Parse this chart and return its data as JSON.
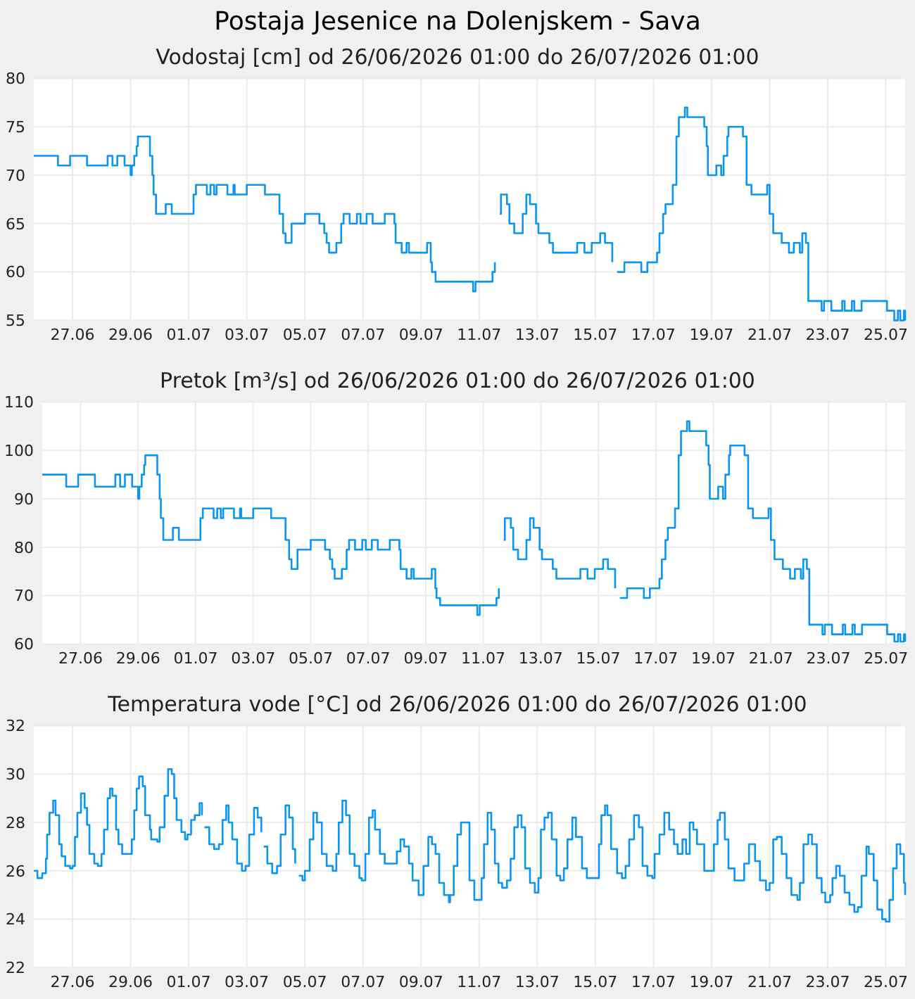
{
  "chart_data": [
    {
      "type": "step",
      "title": "Postaja Jesenice na Dolenjskem - Sava",
      "subtitle": "Vodostaj [cm] od 26/06/2026 01:00 do 26/07/2026 01:00",
      "x": [
        "2026-06-25T16:00",
        "2026-06-26T12:00",
        "2026-06-26T22:00",
        "2026-06-27T12:00",
        "2026-06-28T05:00",
        "2026-06-28T09:00",
        "2026-06-28T13:00",
        "2026-06-28T19:00",
        "2026-06-29T00:00",
        "2026-06-29T01:00",
        "2026-06-29T03:00",
        "2026-06-29T05:00",
        "2026-06-29T06:00",
        "2026-06-29T16:00",
        "2026-06-29T18:00",
        "2026-06-29T19:00",
        "2026-06-29T21:00",
        "2026-06-30T05:00",
        "2026-06-30T10:00",
        "2026-07-01T04:00",
        "2026-07-01T06:00",
        "2026-07-01T15:00",
        "2026-07-01T18:00",
        "2026-07-01T21:00",
        "2026-07-01T23:00",
        "2026-07-02T08:00",
        "2026-07-02T13:00",
        "2026-07-02T14:00",
        "2026-07-03T00:00",
        "2026-07-03T15:00",
        "2026-07-04T03:00",
        "2026-07-04T06:00",
        "2026-07-04T08:00",
        "2026-07-04T13:00",
        "2026-07-05T00:00",
        "2026-07-05T12:00",
        "2026-07-05T16:00",
        "2026-07-05T18:00",
        "2026-07-05T20:00",
        "2026-07-06T02:00",
        "2026-07-06T06:00",
        "2026-07-06T08:00",
        "2026-07-06T13:00",
        "2026-07-06T19:00",
        "2026-07-06T22:00",
        "2026-07-07T03:00",
        "2026-07-07T08:00",
        "2026-07-07T18:00",
        "2026-07-08T02:00",
        "2026-07-08T03:00",
        "2026-07-08T08:00",
        "2026-07-08T12:00",
        "2026-07-08T14:00",
        "2026-07-09T05:00",
        "2026-07-09T08:00",
        "2026-07-09T09:00",
        "2026-07-09T12:00",
        "2026-07-10T19:00",
        "2026-07-10T21:00",
        "2026-07-11T11:00",
        "2026-07-11T13:00",
        "2026-07-11T14:00",
        "2026-07-11T17:00",
        "2026-07-11T18:00",
        "2026-07-11T23:00",
        "2026-07-12T01:00",
        "2026-07-12T05:00",
        "2026-07-12T12:00",
        "2026-07-12T15:00",
        "2026-07-12T18:00",
        "2026-07-12T23:00",
        "2026-07-13T01:00",
        "2026-07-13T10:00",
        "2026-07-13T13:00",
        "2026-07-14T09:00",
        "2026-07-14T15:00",
        "2026-07-14T21:00",
        "2026-07-15T04:00",
        "2026-07-15T08:00",
        "2026-07-15T14:00",
        "2026-07-15T16:00",
        "2026-07-15T18:00",
        "2026-07-16T00:00",
        "2026-07-16T14:00",
        "2026-07-16T19:00",
        "2026-07-17T03:00",
        "2026-07-17T05:00",
        "2026-07-17T08:00",
        "2026-07-17T10:00",
        "2026-07-17T16:00",
        "2026-07-17T19:00",
        "2026-07-17T21:00",
        "2026-07-18T02:00",
        "2026-07-18T04:00",
        "2026-07-18T18:00",
        "2026-07-18T20:00",
        "2026-07-18T21:00",
        "2026-07-19T04:00",
        "2026-07-19T08:00",
        "2026-07-19T10:00",
        "2026-07-19T13:00",
        "2026-07-19T14:00",
        "2026-07-20T02:00",
        "2026-07-20T05:00",
        "2026-07-20T09:00",
        "2026-07-20T22:00",
        "2026-07-21T00:00",
        "2026-07-21T03:00",
        "2026-07-21T10:00",
        "2026-07-21T16:00",
        "2026-07-21T20:00",
        "2026-07-22T01:00",
        "2026-07-22T03:00",
        "2026-07-22T06:00",
        "2026-07-22T08:00",
        "2026-07-22T19:00",
        "2026-07-22T21:00",
        "2026-07-23T03:00",
        "2026-07-23T12:00",
        "2026-07-23T14:00",
        "2026-07-23T20:00",
        "2026-07-23T22:00",
        "2026-07-24T04:00",
        "2026-07-25T01:00",
        "2026-07-25T07:00",
        "2026-07-25T10:00",
        "2026-07-25T12:00",
        "2026-07-25T15:00",
        "2026-07-25T16:00"
      ],
      "series": [
        {
          "color": "#0a96f0",
          "values": [
            72,
            71,
            72,
            71,
            72,
            71,
            72,
            71,
            70,
            71,
            72,
            73,
            74,
            72,
            70,
            68,
            66,
            67,
            66,
            68,
            69,
            68,
            69,
            68,
            69,
            68,
            69,
            68,
            69,
            68,
            66,
            64,
            63,
            65,
            66,
            65,
            64,
            63,
            62,
            63,
            65,
            66,
            65,
            66,
            65,
            66,
            65,
            66,
            65,
            63,
            62,
            63,
            62,
            63,
            61,
            60,
            59,
            58,
            59,
            60,
            61,
            null,
            66,
            68,
            67,
            65,
            64,
            66,
            68,
            67,
            65,
            64,
            63,
            62,
            63,
            62,
            63,
            64,
            63,
            61,
            null,
            60,
            61,
            60,
            61,
            62,
            64,
            66,
            67,
            69,
            74,
            76,
            77,
            76,
            75,
            73,
            70,
            71,
            70,
            72,
            74,
            75,
            74,
            69,
            68,
            69,
            66,
            64,
            63,
            62,
            63,
            62,
            64,
            63,
            57,
            56,
            57,
            56,
            57,
            56,
            57,
            56,
            57,
            56,
            55,
            56,
            55,
            56,
            55
          ]
        }
      ],
      "xlim": [
        "2026-06-25T16:00",
        "2026-07-25T16:00"
      ],
      "xticks": [
        {
          "value": "2026-06-27",
          "label": "27.06"
        },
        {
          "value": "2026-06-29",
          "label": "29.06"
        },
        {
          "value": "2026-07-01",
          "label": "01.07"
        },
        {
          "value": "2026-07-03",
          "label": "03.07"
        },
        {
          "value": "2026-07-05",
          "label": "05.07"
        },
        {
          "value": "2026-07-07",
          "label": "07.07"
        },
        {
          "value": "2026-07-09",
          "label": "09.07"
        },
        {
          "value": "2026-07-11",
          "label": "11.07"
        },
        {
          "value": "2026-07-13",
          "label": "13.07"
        },
        {
          "value": "2026-07-15",
          "label": "15.07"
        },
        {
          "value": "2026-07-17",
          "label": "17.07"
        },
        {
          "value": "2026-07-19",
          "label": "19.07"
        },
        {
          "value": "2026-07-21",
          "label": "21.07"
        },
        {
          "value": "2026-07-23",
          "label": "23.07"
        },
        {
          "value": "2026-07-25",
          "label": "25.07"
        }
      ],
      "ylim": [
        55,
        80
      ],
      "yticks": [
        55,
        60,
        65,
        70,
        75,
        80
      ],
      "grid": true
    },
    {
      "type": "step",
      "subtitle": "Pretok [m³/s] od 26/06/2026 01:00 do 26/07/2026 01:00",
      "x": [
        "2026-06-25T16:00",
        "2026-06-26T12:00",
        "2026-06-26T22:00",
        "2026-06-27T12:00",
        "2026-06-28T05:00",
        "2026-06-28T09:00",
        "2026-06-28T13:00",
        "2026-06-28T19:00",
        "2026-06-29T00:00",
        "2026-06-29T01:00",
        "2026-06-29T03:00",
        "2026-06-29T05:00",
        "2026-06-29T06:00",
        "2026-06-29T16:00",
        "2026-06-29T18:00",
        "2026-06-29T19:00",
        "2026-06-29T21:00",
        "2026-06-30T05:00",
        "2026-06-30T10:00",
        "2026-07-01T04:00",
        "2026-07-01T06:00",
        "2026-07-01T15:00",
        "2026-07-01T18:00",
        "2026-07-01T21:00",
        "2026-07-01T23:00",
        "2026-07-02T08:00",
        "2026-07-02T13:00",
        "2026-07-02T14:00",
        "2026-07-03T00:00",
        "2026-07-03T15:00",
        "2026-07-04T03:00",
        "2026-07-04T06:00",
        "2026-07-04T08:00",
        "2026-07-04T13:00",
        "2026-07-05T00:00",
        "2026-07-05T12:00",
        "2026-07-05T16:00",
        "2026-07-05T18:00",
        "2026-07-05T20:00",
        "2026-07-06T02:00",
        "2026-07-06T06:00",
        "2026-07-06T08:00",
        "2026-07-06T13:00",
        "2026-07-06T19:00",
        "2026-07-06T22:00",
        "2026-07-07T03:00",
        "2026-07-07T08:00",
        "2026-07-07T18:00",
        "2026-07-08T02:00",
        "2026-07-08T03:00",
        "2026-07-08T08:00",
        "2026-07-08T12:00",
        "2026-07-08T14:00",
        "2026-07-09T05:00",
        "2026-07-09T08:00",
        "2026-07-09T09:00",
        "2026-07-09T12:00",
        "2026-07-10T19:00",
        "2026-07-10T21:00",
        "2026-07-11T11:00",
        "2026-07-11T13:00",
        "2026-07-11T14:00",
        "2026-07-11T17:00",
        "2026-07-11T18:00",
        "2026-07-11T23:00",
        "2026-07-12T01:00",
        "2026-07-12T05:00",
        "2026-07-12T12:00",
        "2026-07-12T15:00",
        "2026-07-12T18:00",
        "2026-07-12T23:00",
        "2026-07-13T01:00",
        "2026-07-13T10:00",
        "2026-07-13T13:00",
        "2026-07-14T09:00",
        "2026-07-14T15:00",
        "2026-07-14T21:00",
        "2026-07-15T04:00",
        "2026-07-15T08:00",
        "2026-07-15T14:00",
        "2026-07-15T16:00",
        "2026-07-15T18:00",
        "2026-07-16T00:00",
        "2026-07-16T14:00",
        "2026-07-16T19:00",
        "2026-07-17T03:00",
        "2026-07-17T05:00",
        "2026-07-17T08:00",
        "2026-07-17T10:00",
        "2026-07-17T16:00",
        "2026-07-17T19:00",
        "2026-07-17T21:00",
        "2026-07-18T02:00",
        "2026-07-18T04:00",
        "2026-07-18T18:00",
        "2026-07-18T20:00",
        "2026-07-18T21:00",
        "2026-07-19T04:00",
        "2026-07-19T08:00",
        "2026-07-19T10:00",
        "2026-07-19T13:00",
        "2026-07-19T14:00",
        "2026-07-20T02:00",
        "2026-07-20T05:00",
        "2026-07-20T09:00",
        "2026-07-20T22:00",
        "2026-07-21T00:00",
        "2026-07-21T03:00",
        "2026-07-21T10:00",
        "2026-07-21T16:00",
        "2026-07-21T20:00",
        "2026-07-22T01:00",
        "2026-07-22T03:00",
        "2026-07-22T06:00",
        "2026-07-22T08:00",
        "2026-07-22T19:00",
        "2026-07-22T21:00",
        "2026-07-23T03:00",
        "2026-07-23T12:00",
        "2026-07-23T14:00",
        "2026-07-23T20:00",
        "2026-07-23T22:00",
        "2026-07-24T04:00",
        "2026-07-25T01:00",
        "2026-07-25T07:00",
        "2026-07-25T10:00",
        "2026-07-25T12:00",
        "2026-07-25T15:00",
        "2026-07-25T16:00"
      ],
      "series": [
        {
          "color": "#0a96f0",
          "values": [
            95,
            92.5,
            95,
            92.5,
            95,
            92.5,
            95,
            92.5,
            90,
            92.5,
            95,
            97,
            99,
            95,
            90,
            86,
            81.5,
            84,
            81.5,
            86,
            88,
            86,
            88,
            86,
            88,
            86,
            88,
            86,
            88,
            86,
            81.5,
            77.5,
            75.5,
            79.5,
            81.5,
            79.5,
            77.5,
            75.5,
            73.5,
            75.5,
            79.5,
            81.5,
            79.5,
            81.5,
            79.5,
            81.5,
            79.5,
            81.5,
            79.5,
            75.5,
            73.5,
            75.5,
            73.5,
            75.5,
            71.5,
            69.5,
            68,
            66,
            68,
            69.5,
            71.5,
            null,
            81.5,
            86,
            84,
            79.5,
            77.5,
            81.5,
            86,
            84,
            79.5,
            77.5,
            75.5,
            73.5,
            75.5,
            73.5,
            75.5,
            77.5,
            75.5,
            71.5,
            null,
            69.5,
            71.5,
            69.5,
            71.5,
            73.5,
            77.5,
            81.5,
            84,
            88,
            99,
            104,
            106,
            104,
            101,
            97,
            90,
            92.5,
            90,
            95,
            99,
            101,
            99,
            88,
            86,
            88,
            81.5,
            77.5,
            75.5,
            73.5,
            75.5,
            73.5,
            77.5,
            75.5,
            64,
            62,
            64,
            62,
            64,
            62,
            64,
            62,
            64,
            62,
            60.5,
            62,
            60.5,
            62,
            60.5
          ]
        }
      ],
      "xlim": [
        "2026-06-25T16:00",
        "2026-07-25T16:00"
      ],
      "xticks": [
        {
          "value": "2026-06-27",
          "label": "27.06"
        },
        {
          "value": "2026-06-29",
          "label": "29.06"
        },
        {
          "value": "2026-07-01",
          "label": "01.07"
        },
        {
          "value": "2026-07-03",
          "label": "03.07"
        },
        {
          "value": "2026-07-05",
          "label": "05.07"
        },
        {
          "value": "2026-07-07",
          "label": "07.07"
        },
        {
          "value": "2026-07-09",
          "label": "09.07"
        },
        {
          "value": "2026-07-11",
          "label": "11.07"
        },
        {
          "value": "2026-07-13",
          "label": "13.07"
        },
        {
          "value": "2026-07-15",
          "label": "15.07"
        },
        {
          "value": "2026-07-17",
          "label": "17.07"
        },
        {
          "value": "2026-07-19",
          "label": "19.07"
        },
        {
          "value": "2026-07-21",
          "label": "21.07"
        },
        {
          "value": "2026-07-23",
          "label": "23.07"
        },
        {
          "value": "2026-07-25",
          "label": "25.07"
        }
      ],
      "ylim": [
        60,
        110
      ],
      "yticks": [
        60,
        70,
        80,
        90,
        100,
        110
      ],
      "grid": true
    },
    {
      "type": "step",
      "subtitle": "Temperatura vode [°C] od 26/06/2026 01:00 do 26/07/2026 01:00",
      "x": [
        "2026-06-25T16:00",
        "2026-06-25T19:00",
        "2026-06-25T23:00",
        "2026-06-26T02:00",
        "2026-06-26T03:00",
        "2026-06-26T05:00",
        "2026-06-26T08:00",
        "2026-06-26T10:00",
        "2026-06-26T13:00",
        "2026-06-26T15:00",
        "2026-06-26T18:00",
        "2026-06-26T22:00",
        "2026-06-27T00:00",
        "2026-06-27T02:00",
        "2026-06-27T04:00",
        "2026-06-27T07:00",
        "2026-06-27T10:00",
        "2026-06-27T12:00",
        "2026-06-27T14:00",
        "2026-06-27T18:00",
        "2026-06-27T21:00",
        "2026-06-28T00:00",
        "2026-06-28T02:00",
        "2026-06-28T05:00",
        "2026-06-28T07:00",
        "2026-06-28T09:00",
        "2026-06-28T12:00",
        "2026-06-28T14:00",
        "2026-06-28T17:00",
        "2026-06-28T21:00",
        "2026-06-29T01:00",
        "2026-06-29T03:00",
        "2026-06-29T05:00",
        "2026-06-29T07:00",
        "2026-06-29T10:00",
        "2026-06-29T12:00",
        "2026-06-29T16:00",
        "2026-06-29T17:00",
        "2026-06-29T22:00",
        "2026-06-30T00:00",
        "2026-06-30T04:00",
        "2026-06-30T07:00",
        "2026-06-30T10:00",
        "2026-06-30T12:00",
        "2026-06-30T14:00",
        "2026-06-30T18:00",
        "2026-06-30T21:00",
        "2026-06-30T23:00",
        "2026-07-01T02:00",
        "2026-07-01T05:00",
        "2026-07-01T09:00",
        "2026-07-01T11:00",
        "2026-07-01T12:00",
        "2026-07-01T13:00",
        "2026-07-01T17:00",
        "2026-07-01T21:00",
        "2026-07-02T01:00",
        "2026-07-02T04:00",
        "2026-07-02T07:00",
        "2026-07-02T09:00",
        "2026-07-02T12:00",
        "2026-07-02T16:00",
        "2026-07-02T20:00",
        "2026-07-02T23:00",
        "2026-07-03T02:00",
        "2026-07-03T06:00",
        "2026-07-03T09:00",
        "2026-07-03T12:00",
        "2026-07-03T13:00",
        "2026-07-03T14:00",
        "2026-07-03T17:00",
        "2026-07-03T21:00",
        "2026-07-04T01:00",
        "2026-07-04T04:00",
        "2026-07-04T08:00",
        "2026-07-04T11:00",
        "2026-07-04T14:00",
        "2026-07-04T16:00",
        "2026-07-04T17:00",
        "2026-07-04T19:00",
        "2026-07-04T22:00",
        "2026-07-05T00:00",
        "2026-07-05T04:00",
        "2026-07-05T07:00",
        "2026-07-05T10:00",
        "2026-07-05T14:00",
        "2026-07-05T18:00",
        "2026-07-05T23:00",
        "2026-07-06T02:00",
        "2026-07-06T04:00",
        "2026-07-06T07:00",
        "2026-07-06T10:00",
        "2026-07-06T13:00",
        "2026-07-06T17:00",
        "2026-07-06T21:00",
        "2026-07-06T23:00",
        "2026-07-07T02:00",
        "2026-07-07T05:00",
        "2026-07-07T08:00",
        "2026-07-07T10:00",
        "2026-07-07T14:00",
        "2026-07-07T18:00",
        "2026-07-08T00:00",
        "2026-07-08T04:00",
        "2026-07-08T07:00",
        "2026-07-08T10:00",
        "2026-07-08T14:00",
        "2026-07-08T17:00",
        "2026-07-08T22:00",
        "2026-07-09T02:00",
        "2026-07-09T06:00",
        "2026-07-09T09:00",
        "2026-07-09T12:00",
        "2026-07-09T15:00",
        "2026-07-09T19:00",
        "2026-07-09T23:00",
        "2026-07-10T00:00",
        "2026-07-10T03:00",
        "2026-07-10T06:00",
        "2026-07-10T09:00",
        "2026-07-10T16:00",
        "2026-07-10T20:00",
        "2026-07-10T23:00",
        "2026-07-11T02:00",
        "2026-07-11T04:00",
        "2026-07-11T07:00",
        "2026-07-11T10:00",
        "2026-07-11T13:00",
        "2026-07-11T16:00",
        "2026-07-11T19:00",
        "2026-07-11T23:00",
        "2026-07-12T02:00",
        "2026-07-12T05:00",
        "2026-07-12T08:00",
        "2026-07-12T11:00",
        "2026-07-12T14:00",
        "2026-07-12T18:00",
        "2026-07-12T22:00",
        "2026-07-13T01:00",
        "2026-07-13T03:00",
        "2026-07-13T06:00",
        "2026-07-13T09:00",
        "2026-07-13T12:00",
        "2026-07-13T16:00",
        "2026-07-13T19:00",
        "2026-07-13T22:00",
        "2026-07-14T01:00",
        "2026-07-14T05:00",
        "2026-07-14T08:00",
        "2026-07-14T13:00",
        "2026-07-14T17:00",
        "2026-07-14T23:00",
        "2026-07-15T03:00",
        "2026-07-15T05:00",
        "2026-07-15T08:00",
        "2026-07-15T10:00",
        "2026-07-15T13:00",
        "2026-07-15T18:00",
        "2026-07-15T22:00",
        "2026-07-16T01:00",
        "2026-07-16T04:00",
        "2026-07-16T08:00",
        "2026-07-16T12:00",
        "2026-07-16T15:00",
        "2026-07-16T19:00",
        "2026-07-16T23:00",
        "2026-07-17T01:00",
        "2026-07-17T05:00",
        "2026-07-17T09:00",
        "2026-07-17T13:00",
        "2026-07-17T17:00",
        "2026-07-17T20:00",
        "2026-07-18T00:00",
        "2026-07-18T03:00",
        "2026-07-18T06:00",
        "2026-07-18T09:00",
        "2026-07-18T12:00",
        "2026-07-18T18:00",
        "2026-07-19T00:00",
        "2026-07-19T02:00",
        "2026-07-19T05:00",
        "2026-07-19T07:00",
        "2026-07-19T11:00",
        "2026-07-19T14:00",
        "2026-07-19T19:00",
        "2026-07-19T23:00",
        "2026-07-20T03:00",
        "2026-07-20T07:00",
        "2026-07-20T09:00",
        "2026-07-20T12:00",
        "2026-07-20T16:00",
        "2026-07-20T21:00",
        "2026-07-21T00:00",
        "2026-07-21T03:00",
        "2026-07-21T06:00",
        "2026-07-21T10:00",
        "2026-07-21T14:00",
        "2026-07-21T18:00",
        "2026-07-21T23:00",
        "2026-07-22T01:00",
        "2026-07-22T04:00",
        "2026-07-22T08:00",
        "2026-07-22T11:00",
        "2026-07-22T15:00",
        "2026-07-22T19:00",
        "2026-07-22T22:00",
        "2026-07-23T02:00",
        "2026-07-23T04:00",
        "2026-07-23T07:00",
        "2026-07-23T10:00",
        "2026-07-23T14:00",
        "2026-07-23T18:00",
        "2026-07-23T22:00",
        "2026-07-24T01:00",
        "2026-07-24T04:00",
        "2026-07-24T08:00",
        "2026-07-24T10:00",
        "2026-07-24T14:00",
        "2026-07-24T17:00",
        "2026-07-24T21:00",
        "2026-07-25T00:00",
        "2026-07-25T03:00",
        "2026-07-25T06:00",
        "2026-07-25T09:00",
        "2026-07-25T12:00",
        "2026-07-25T15:00",
        "2026-07-25T16:00"
      ],
      "series": [
        {
          "color": "#0a96f0",
          "values": [
            26.0,
            25.7,
            25.9,
            26.5,
            27.5,
            28.4,
            28.9,
            28.3,
            27.1,
            26.6,
            26.2,
            26.1,
            26.2,
            27.4,
            28.4,
            29.2,
            28.6,
            27.9,
            26.7,
            26.3,
            26.2,
            26.7,
            27.7,
            29.0,
            29.4,
            29.1,
            27.7,
            27.1,
            26.7,
            26.7,
            27.3,
            28.5,
            29.4,
            29.9,
            29.5,
            28.3,
            27.7,
            27.3,
            27.2,
            27.8,
            29.1,
            30.2,
            30.0,
            29.0,
            28.1,
            27.6,
            27.3,
            27.5,
            28.1,
            28.3,
            28.8,
            28.3,
            null,
            27.8,
            27.1,
            26.9,
            27.1,
            28.1,
            28.7,
            28.0,
            27.3,
            26.3,
            26.0,
            26.2,
            27.5,
            28.6,
            28.2,
            27.6,
            null,
            27.0,
            26.3,
            25.9,
            26.2,
            27.5,
            28.7,
            28.2,
            26.9,
            26.3,
            null,
            25.8,
            25.6,
            26.0,
            27.3,
            28.4,
            28.0,
            26.7,
            26.2,
            26.0,
            26.7,
            28.0,
            28.9,
            28.3,
            26.7,
            26.2,
            25.7,
            25.6,
            26.7,
            28.2,
            28.5,
            27.7,
            26.7,
            26.3,
            26.3,
            26.8,
            27.3,
            27.0,
            26.3,
            25.6,
            25.0,
            26.2,
            27.4,
            27.1,
            26.7,
            25.5,
            25.0,
            24.7,
            25.0,
            26.2,
            27.5,
            28.0,
            25.6,
            24.8,
            24.8,
            25.7,
            27.1,
            28.4,
            27.7,
            26.3,
            25.5,
            25.3,
            25.6,
            26.5,
            27.8,
            28.3,
            27.8,
            26.1,
            25.5,
            25.1,
            25.7,
            27.7,
            28.2,
            28.4,
            27.3,
            25.8,
            25.6,
            26.1,
            27.3,
            28.2,
            27.4,
            26.1,
            25.7,
            25.7,
            27.1,
            28.3,
            28.7,
            28.3,
            26.9,
            25.9,
            25.7,
            26.2,
            27.3,
            28.3,
            27.8,
            26.2,
            25.8,
            25.7,
            26.7,
            27.5,
            28.4,
            27.7,
            27.1,
            26.7,
            27.3,
            26.7,
            28.0,
            27.7,
            27.1,
            26.0,
            26.0,
            27.1,
            28.1,
            28.4,
            27.3,
            26.1,
            25.6,
            25.6,
            26.3,
            27.1,
            27.1,
            26.4,
            25.6,
            25.2,
            25.5,
            27.3,
            27.4,
            26.7,
            25.7,
            25.0,
            24.8,
            25.5,
            27.1,
            27.5,
            27.1,
            25.7,
            25.1,
            24.7,
            25.0,
            25.7,
            26.2,
            25.8,
            25.1,
            24.6,
            24.3,
            24.5,
            25.8,
            27.0,
            26.7,
            25.6,
            24.4,
            24.0,
            23.9,
            24.8,
            26.1,
            27.1,
            26.7,
            25.5,
            25.0
          ]
        }
      ],
      "xlim": [
        "2026-06-25T16:00",
        "2026-07-25T16:00"
      ],
      "xticks": [
        {
          "value": "2026-06-27",
          "label": "27.06"
        },
        {
          "value": "2026-06-29",
          "label": "29.06"
        },
        {
          "value": "2026-07-01",
          "label": "01.07"
        },
        {
          "value": "2026-07-03",
          "label": "03.07"
        },
        {
          "value": "2026-07-05",
          "label": "05.07"
        },
        {
          "value": "2026-07-07",
          "label": "07.07"
        },
        {
          "value": "2026-07-09",
          "label": "09.07"
        },
        {
          "value": "2026-07-11",
          "label": "11.07"
        },
        {
          "value": "2026-07-13",
          "label": "13.07"
        },
        {
          "value": "2026-07-15",
          "label": "15.07"
        },
        {
          "value": "2026-07-17",
          "label": "17.07"
        },
        {
          "value": "2026-07-19",
          "label": "19.07"
        },
        {
          "value": "2026-07-21",
          "label": "21.07"
        },
        {
          "value": "2026-07-23",
          "label": "23.07"
        },
        {
          "value": "2026-07-25",
          "label": "25.07"
        }
      ],
      "ylim": [
        22,
        32
      ],
      "yticks": [
        22,
        24,
        26,
        28,
        30,
        32
      ],
      "grid": true
    }
  ]
}
